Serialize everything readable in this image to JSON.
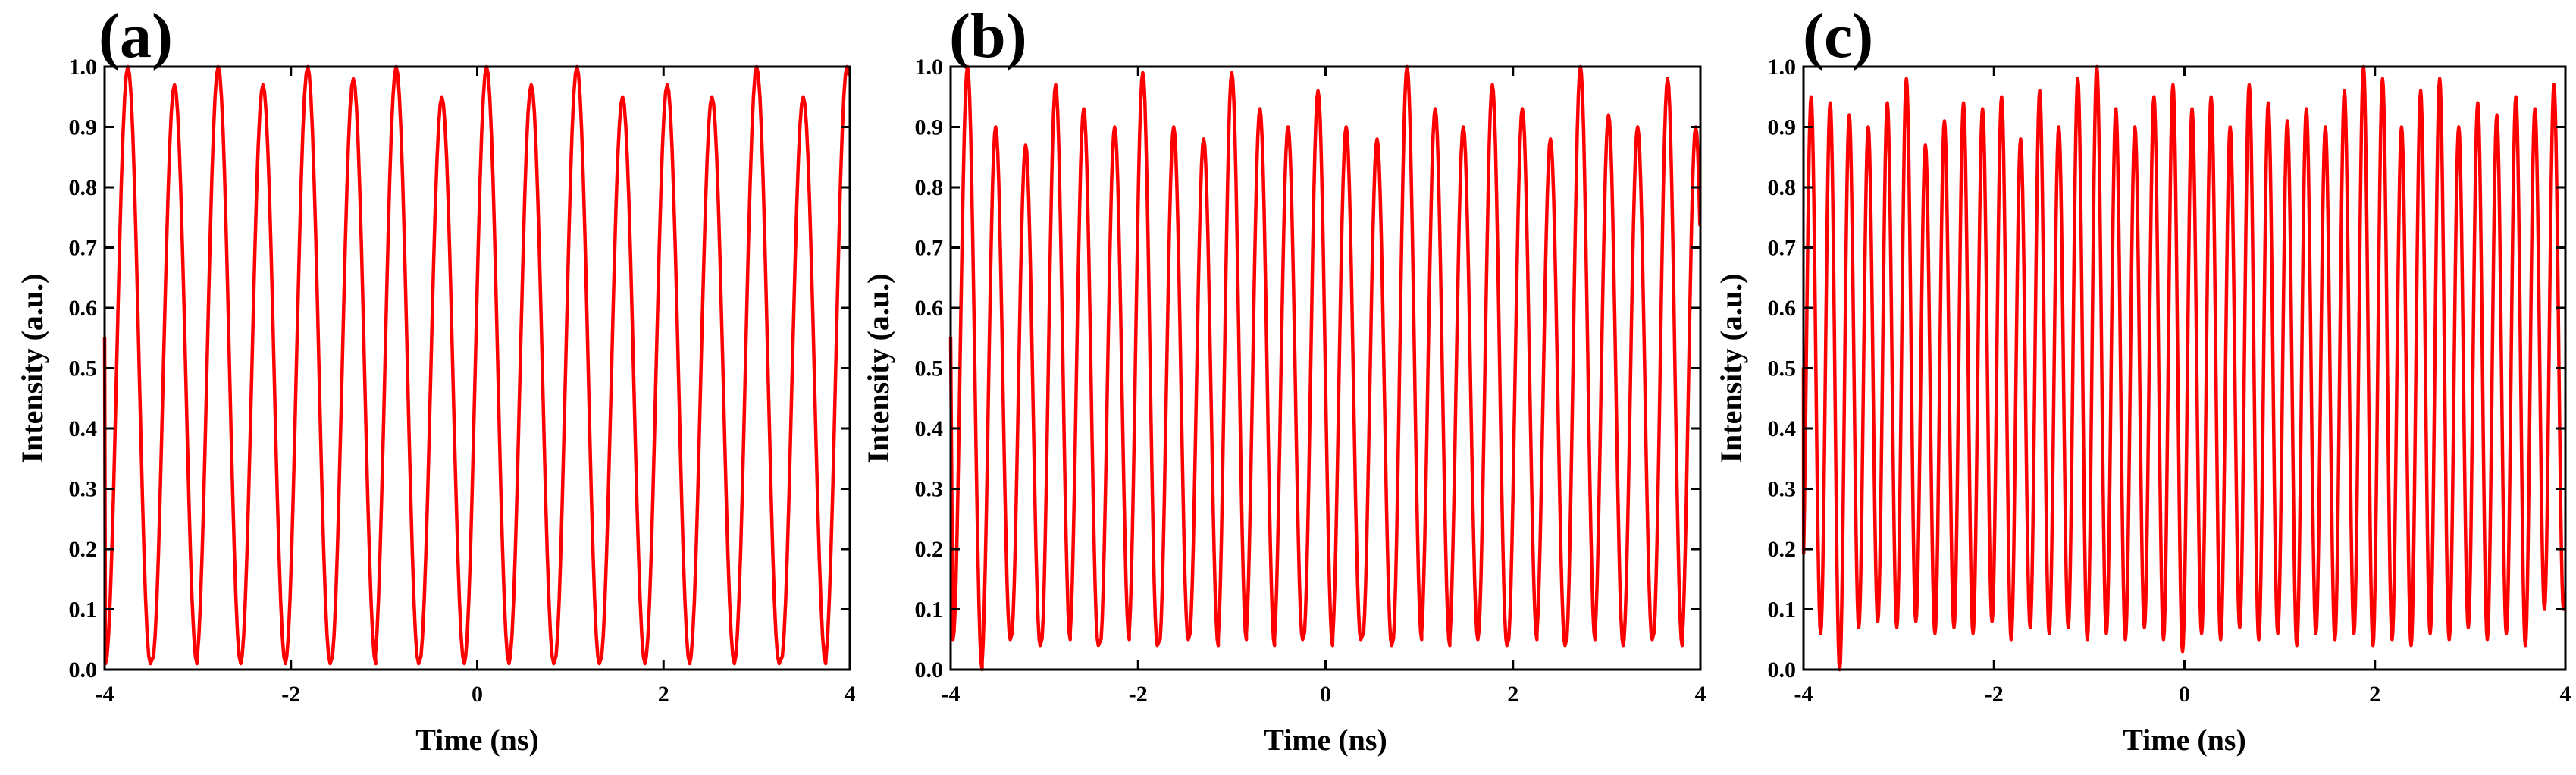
{
  "colors": {
    "trace": "#ff0000",
    "axis": "#000000",
    "background": "#ffffff"
  },
  "chart_data": [
    {
      "type": "line",
      "panel_label": "(a)",
      "title": "",
      "xlabel": "Time (ns)",
      "ylabel": "Intensity (a.u.)",
      "xlim": [
        -4,
        4
      ],
      "ylim": [
        0,
        1.0
      ],
      "xticks": [
        -4,
        -2,
        0,
        2,
        4
      ],
      "yticks": [
        0.0,
        0.1,
        0.2,
        0.3,
        0.4,
        0.5,
        0.6,
        0.7,
        0.8,
        0.9,
        1.0
      ],
      "grid": false,
      "series": [
        {
          "name": "intensity",
          "peaks_x": [
            -3.75,
            -3.25,
            -2.78,
            -2.3,
            -1.82,
            -1.33,
            -0.87,
            -0.38,
            0.1,
            0.58,
            1.07,
            1.56,
            2.04,
            2.52,
            3.0,
            3.5,
            3.97
          ],
          "peaks_y": [
            1.0,
            0.97,
            1.0,
            0.97,
            1.0,
            0.98,
            1.0,
            0.95,
            1.0,
            0.97,
            1.0,
            0.95,
            0.97,
            0.95,
            1.0,
            0.95,
            1.0
          ],
          "troughs_y": [
            0.01,
            0.01,
            0.01,
            0.01,
            0.01,
            0.01,
            0.01,
            0.01,
            0.01,
            0.01,
            0.01,
            0.01,
            0.01,
            0.01,
            0.01,
            0.01,
            0.01
          ]
        }
      ]
    },
    {
      "type": "line",
      "panel_label": "(b)",
      "title": "",
      "xlabel": "Time (ns)",
      "ylabel": "Intensity (a.u.)",
      "xlim": [
        -4,
        4
      ],
      "ylim": [
        0,
        1.0
      ],
      "xticks": [
        -4,
        -2,
        0,
        2,
        4
      ],
      "yticks": [
        0.0,
        0.1,
        0.2,
        0.3,
        0.4,
        0.5,
        0.6,
        0.7,
        0.8,
        0.9,
        1.0
      ],
      "grid": false,
      "series": [
        {
          "name": "intensity",
          "peaks_x": [
            -3.82,
            -3.52,
            -3.2,
            -2.88,
            -2.58,
            -2.25,
            -1.95,
            -1.62,
            -1.3,
            -1.0,
            -0.7,
            -0.4,
            -0.08,
            0.22,
            0.55,
            0.87,
            1.17,
            1.47,
            1.78,
            2.1,
            2.4,
            2.72,
            3.02,
            3.33,
            3.65,
            3.95
          ],
          "peaks_y": [
            1.0,
            0.9,
            0.87,
            0.97,
            0.93,
            0.9,
            0.99,
            0.9,
            0.88,
            0.99,
            0.93,
            0.9,
            0.96,
            0.9,
            0.88,
            1.0,
            0.93,
            0.9,
            0.97,
            0.93,
            0.88,
            1.0,
            0.92,
            0.9,
            0.98,
            0.9
          ],
          "troughs_y": [
            0.05,
            0.0,
            0.05,
            0.04,
            0.05,
            0.04,
            0.05,
            0.04,
            0.05,
            0.04,
            0.05,
            0.04,
            0.05,
            0.04,
            0.05,
            0.04,
            0.05,
            0.04,
            0.05,
            0.04,
            0.05,
            0.04,
            0.05,
            0.04,
            0.05,
            0.04
          ]
        }
      ]
    },
    {
      "type": "line",
      "panel_label": "(c)",
      "title": "",
      "xlabel": "Time (ns)",
      "ylabel": "Intensity (a.u.)",
      "xlim": [
        -4,
        4
      ],
      "ylim": [
        0,
        1.0
      ],
      "xticks": [
        -4,
        -2,
        0,
        2,
        4
      ],
      "yticks": [
        0.0,
        0.1,
        0.2,
        0.3,
        0.4,
        0.5,
        0.6,
        0.7,
        0.8,
        0.9,
        1.0
      ],
      "grid": false,
      "series": [
        {
          "name": "intensity",
          "peaks_x": [
            -3.92,
            -3.72,
            -3.52,
            -3.32,
            -3.12,
            -2.92,
            -2.72,
            -2.52,
            -2.32,
            -2.12,
            -1.92,
            -1.72,
            -1.52,
            -1.32,
            -1.12,
            -0.92,
            -0.72,
            -0.52,
            -0.32,
            -0.12,
            0.08,
            0.28,
            0.48,
            0.68,
            0.88,
            1.08,
            1.28,
            1.48,
            1.68,
            1.88,
            2.08,
            2.28,
            2.48,
            2.68,
            2.88,
            3.08,
            3.28,
            3.48,
            3.68,
            3.88
          ],
          "peaks_y": [
            0.95,
            0.94,
            0.92,
            0.9,
            0.94,
            0.98,
            0.87,
            0.91,
            0.94,
            0.93,
            0.95,
            0.88,
            0.96,
            0.9,
            0.98,
            1.0,
            0.93,
            0.9,
            0.95,
            0.97,
            0.93,
            0.95,
            0.9,
            0.97,
            0.94,
            0.91,
            0.93,
            0.9,
            0.96,
            1.0,
            0.98,
            0.9,
            0.96,
            0.98,
            0.9,
            0.94,
            0.92,
            0.95,
            0.93,
            0.97
          ],
          "troughs_y": [
            0.1,
            0.06,
            0.0,
            0.07,
            0.08,
            0.07,
            0.08,
            0.06,
            0.07,
            0.06,
            0.08,
            0.05,
            0.07,
            0.06,
            0.07,
            0.05,
            0.06,
            0.05,
            0.07,
            0.05,
            0.03,
            0.06,
            0.05,
            0.07,
            0.05,
            0.06,
            0.04,
            0.06,
            0.05,
            0.06,
            0.04,
            0.05,
            0.04,
            0.06,
            0.05,
            0.07,
            0.05,
            0.06,
            0.04,
            0.1
          ]
        }
      ]
    }
  ]
}
